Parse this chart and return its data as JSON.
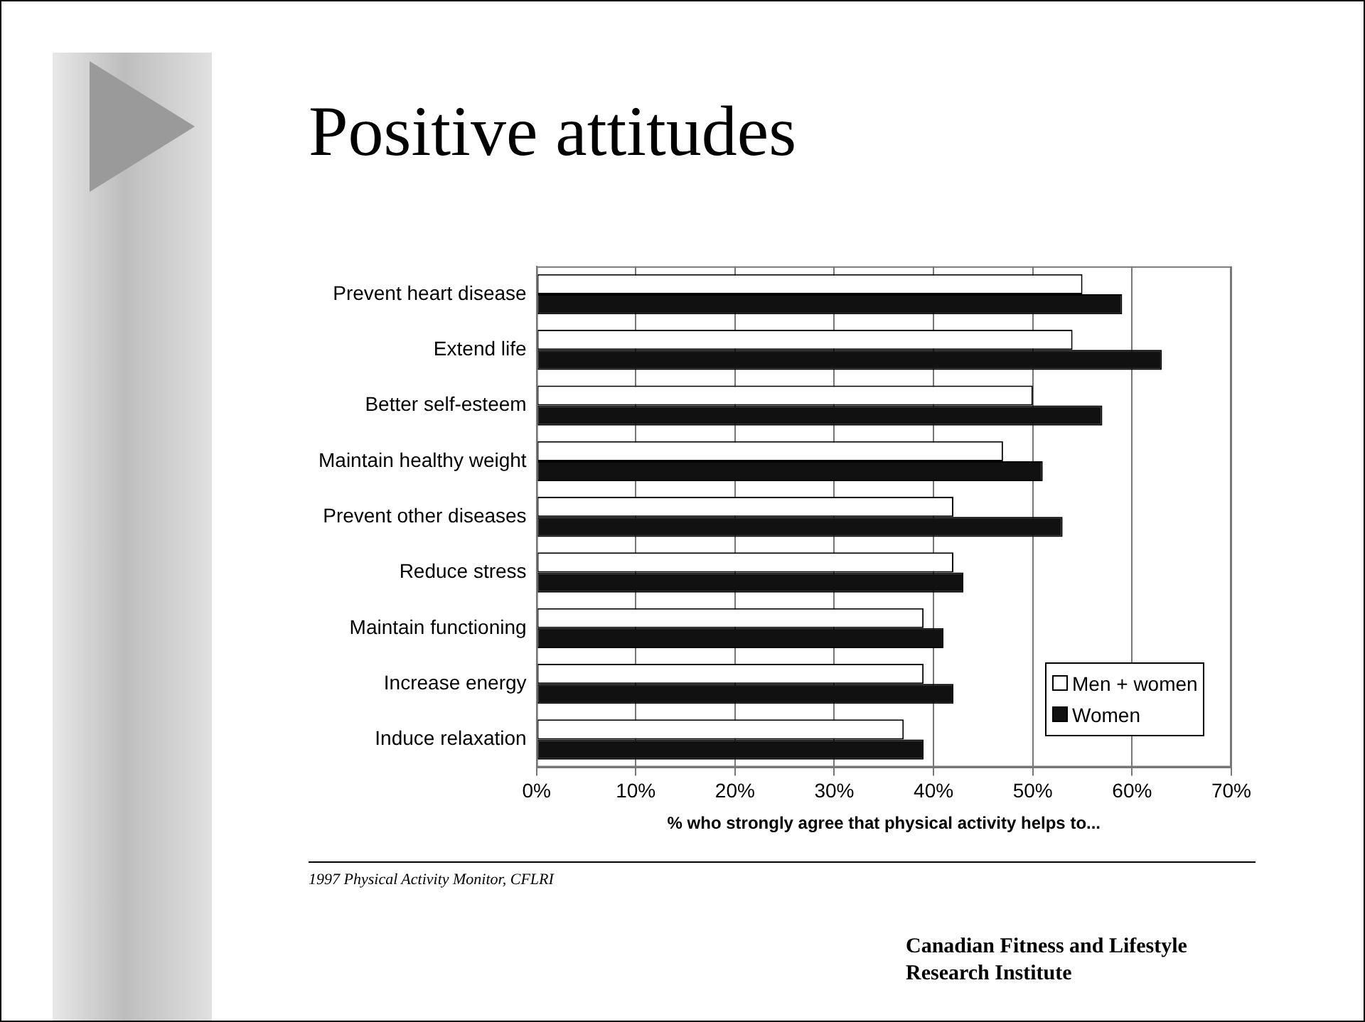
{
  "chart_data": {
    "type": "bar",
    "orientation": "horizontal",
    "title": "Positive attitudes",
    "xlabel": "% who strongly agree that physical activity helps to...",
    "categories": [
      "Prevent heart disease",
      "Extend life",
      "Better self-esteem",
      "Maintain healthy weight",
      "Prevent other diseases",
      "Reduce stress",
      "Maintain functioning",
      "Increase energy",
      "Induce relaxation"
    ],
    "series": [
      {
        "name": "Men + women",
        "color": "#ffffff",
        "values": [
          55,
          54,
          50,
          47,
          42,
          42,
          39,
          39,
          37
        ]
      },
      {
        "name": "Women",
        "color": "#111111",
        "values": [
          59,
          63,
          57,
          51,
          53,
          43,
          41,
          42,
          39
        ]
      }
    ],
    "xlim": [
      0,
      70
    ],
    "xticks": [
      {
        "value": 0,
        "label": "0%"
      },
      {
        "value": 10,
        "label": "10%"
      },
      {
        "value": 20,
        "label": "20%"
      },
      {
        "value": 30,
        "label": "30%"
      },
      {
        "value": 40,
        "label": "40%"
      },
      {
        "value": 50,
        "label": "50%"
      },
      {
        "value": 60,
        "label": "60%"
      },
      {
        "value": 70,
        "label": "70%"
      }
    ],
    "grid": "x",
    "legend": "bottom right",
    "annotations": [
      "1997 Physical Activity Monitor, CFLRI",
      "Canadian Fitness and Lifestyle Research Institute"
    ]
  }
}
